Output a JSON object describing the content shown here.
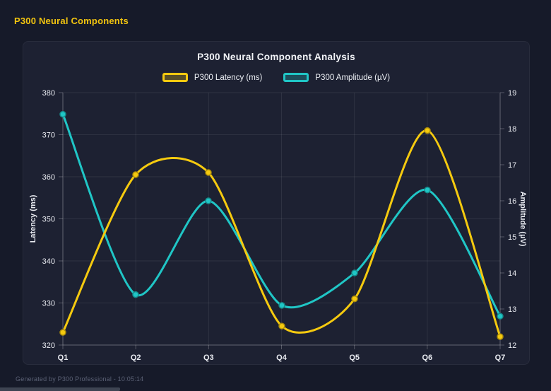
{
  "header": {
    "title": "P300 Neural Components"
  },
  "footer": {
    "text": "Generated by P300 Professional - 10:05:14"
  },
  "theme": {
    "outer_bg": "#161a29",
    "panel_bg": "#1d2132",
    "grid_color": "rgba(255,255,255,0.08)",
    "axis_border_color": "rgba(255,255,255,0.25)",
    "tick_label_color": "#e8eaf0",
    "header_accent": "#f2c40f"
  },
  "chart_data": {
    "type": "line",
    "title": "P300 Neural Component Analysis",
    "categories": [
      "Q1",
      "Q2",
      "Q3",
      "Q4",
      "Q5",
      "Q6",
      "Q7"
    ],
    "series": [
      {
        "name": "P300 Latency (ms)",
        "axis": "left",
        "color": "#f5ca0f",
        "values": [
          323,
          360.5,
          361,
          324.5,
          331,
          371,
          322
        ]
      },
      {
        "name": "P300 Amplitude (µV)",
        "axis": "right",
        "color": "#20c6c6",
        "values": [
          18.4,
          13.4,
          16.0,
          13.1,
          14.0,
          16.3,
          12.8
        ]
      }
    ],
    "axes": {
      "left": {
        "label": "Latency (ms)",
        "min": 320,
        "max": 380,
        "ticks": [
          320,
          330,
          340,
          350,
          360,
          370,
          380
        ]
      },
      "right": {
        "label": "Amplitude (µV)",
        "min": 12,
        "max": 19,
        "ticks": [
          12,
          13,
          14,
          15,
          16,
          17,
          18,
          19
        ]
      }
    },
    "grid": true,
    "legend_position": "top",
    "smoothing": "spline",
    "markers": true
  }
}
